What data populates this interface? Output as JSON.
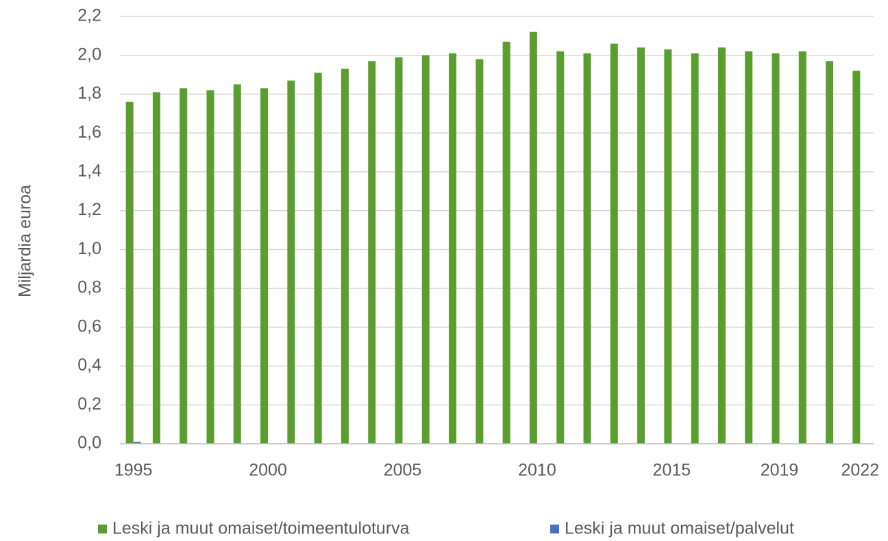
{
  "chart_data": {
    "type": "bar",
    "y_label": "Miljardia euroa",
    "categories": [
      "1995",
      null,
      null,
      null,
      null,
      "2000",
      null,
      null,
      null,
      null,
      "2005",
      null,
      null,
      null,
      null,
      "2010",
      null,
      null,
      null,
      null,
      "2015",
      null,
      null,
      null,
      "2019",
      null,
      null,
      "2022"
    ],
    "series": [
      {
        "name": "Leski ja muut omaiset/toimeentuloturva",
        "color": "#5b9e30",
        "values": [
          1.76,
          1.81,
          1.83,
          1.82,
          1.85,
          1.83,
          1.87,
          1.91,
          1.93,
          1.97,
          1.99,
          2.0,
          2.01,
          1.98,
          2.07,
          2.12,
          2.02,
          2.01,
          2.06,
          2.04,
          2.03,
          2.01,
          2.04,
          2.02,
          2.01,
          2.02,
          1.97,
          1.92
        ]
      },
      {
        "name": "Leski ja muut omaiset/palvelut",
        "color": "#4472c4",
        "values": [
          0.01,
          0,
          0,
          0,
          0,
          0,
          0,
          0,
          0,
          0,
          0,
          0,
          0,
          0,
          0,
          0,
          0,
          0,
          0,
          0,
          0,
          0,
          0,
          0,
          0,
          0,
          0,
          0
        ]
      }
    ],
    "ylim": [
      0,
      2.2
    ],
    "yticks": [
      {
        "value": 0,
        "label": "0,0"
      },
      {
        "value": 0.2,
        "label": "0,2"
      },
      {
        "value": 0.4,
        "label": "0,4"
      },
      {
        "value": 0.6,
        "label": "0,6"
      },
      {
        "value": 0.8,
        "label": "0,8"
      },
      {
        "value": 1.0,
        "label": "1,0"
      },
      {
        "value": 1.2,
        "label": "1,2"
      },
      {
        "value": 1.4,
        "label": "1,4"
      },
      {
        "value": 1.6,
        "label": "1,6"
      },
      {
        "value": 1.8,
        "label": "1,8"
      },
      {
        "value": 2.0,
        "label": "2,0"
      },
      {
        "value": 2.2,
        "label": "2,2"
      }
    ],
    "grid": true,
    "legend": "bottom"
  }
}
